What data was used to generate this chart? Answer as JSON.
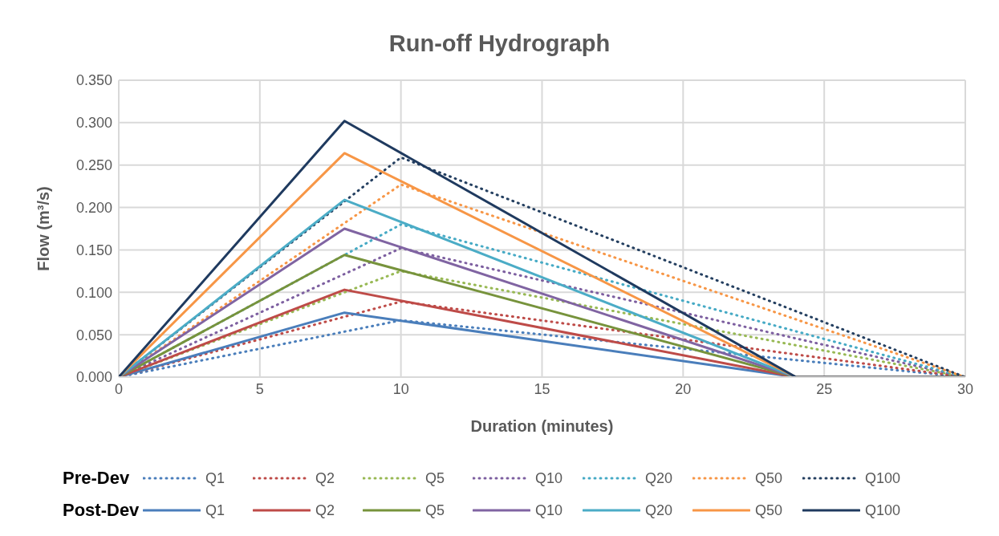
{
  "chart_data": {
    "type": "line",
    "title": "Run-off Hydrograph",
    "xlabel": "Duration (minutes)",
    "ylabel": "Flow (m³/s)",
    "xlim": [
      0,
      30
    ],
    "xticks": [
      0,
      5,
      10,
      15,
      20,
      25,
      30
    ],
    "ylim": [
      0,
      0.35
    ],
    "yticks": [
      {
        "value": 0,
        "label": "0.000"
      },
      {
        "value": 0.05,
        "label": "0.050"
      },
      {
        "value": 0.1,
        "label": "0.100"
      },
      {
        "value": 0.15,
        "label": "0.150"
      },
      {
        "value": 0.2,
        "label": "0.200"
      },
      {
        "value": 0.25,
        "label": "0.250"
      },
      {
        "value": 0.3,
        "label": "0.300"
      },
      {
        "value": 0.35,
        "label": "0.350"
      }
    ],
    "grid": true,
    "legend": "bottom",
    "marker": "none",
    "annotations": [
      "Pre-Dev",
      "Post-Dev"
    ],
    "series": [
      {
        "name": "Q1",
        "color": "#4a7ebb",
        "line_style": "dotted",
        "x": [
          0,
          10,
          30
        ],
        "values": [
          0,
          0.067,
          0
        ]
      },
      {
        "name": "Q2",
        "color": "#be4b48",
        "line_style": "dotted",
        "x": [
          0,
          10,
          30
        ],
        "values": [
          0,
          0.089,
          0
        ]
      },
      {
        "name": "Q5",
        "color": "#98b954",
        "line_style": "dotted",
        "x": [
          0,
          10,
          30
        ],
        "values": [
          0,
          0.125,
          0
        ]
      },
      {
        "name": "Q10",
        "color": "#7d5fa0",
        "line_style": "dotted",
        "x": [
          0,
          10,
          30
        ],
        "values": [
          0,
          0.152,
          0
        ]
      },
      {
        "name": "Q20",
        "color": "#46aac5",
        "line_style": "dotted",
        "x": [
          0,
          10,
          30
        ],
        "values": [
          0,
          0.18,
          0
        ]
      },
      {
        "name": "Q50",
        "color": "#f79646",
        "line_style": "dotted",
        "x": [
          0,
          10,
          30
        ],
        "values": [
          0,
          0.227,
          0
        ]
      },
      {
        "name": "Q100",
        "color": "#243f60",
        "line_style": "dotted",
        "x": [
          0,
          10,
          30
        ],
        "values": [
          0,
          0.259,
          0
        ]
      },
      {
        "name": "Q1",
        "color": "#4a7ebb",
        "line_style": "solid",
        "x": [
          0,
          8,
          24,
          30
        ],
        "values": [
          0,
          0.076,
          0,
          0
        ]
      },
      {
        "name": "Q2",
        "color": "#be4b48",
        "line_style": "solid",
        "x": [
          0,
          8,
          24,
          30
        ],
        "values": [
          0,
          0.103,
          0,
          0
        ]
      },
      {
        "name": "Q5",
        "color": "#77933c",
        "line_style": "solid",
        "x": [
          0,
          8,
          24,
          30
        ],
        "values": [
          0,
          0.144,
          0,
          0
        ]
      },
      {
        "name": "Q10",
        "color": "#8064a2",
        "line_style": "solid",
        "x": [
          0,
          8,
          24,
          30
        ],
        "values": [
          0,
          0.175,
          0,
          0
        ]
      },
      {
        "name": "Q20",
        "color": "#4bacc6",
        "line_style": "solid",
        "x": [
          0,
          8,
          24,
          30
        ],
        "values": [
          0,
          0.209,
          0,
          0
        ]
      },
      {
        "name": "Q50",
        "color": "#f79646",
        "line_style": "solid",
        "x": [
          0,
          8,
          24,
          30
        ],
        "values": [
          0,
          0.264,
          0,
          0
        ]
      },
      {
        "name": "Q100",
        "color": "#1f3a5f",
        "line_style": "solid",
        "x": [
          0,
          8,
          24,
          30
        ],
        "values": [
          0,
          0.302,
          0,
          0
        ]
      }
    ]
  }
}
